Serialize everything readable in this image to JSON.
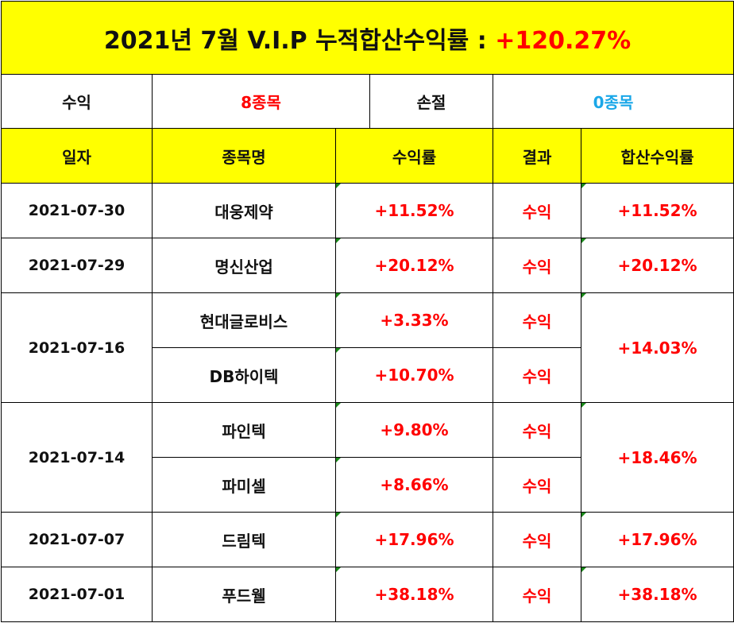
{
  "title": {
    "prefix": "2021년 7월 V.I.P 누적합산수익률 : ",
    "total_return": "+120.27%"
  },
  "summary": {
    "profit_label": "수익",
    "profit_count": "8종목",
    "loss_label": "손절",
    "loss_count": "0종목"
  },
  "headers": {
    "date": "일자",
    "stock": "종목명",
    "return": "수익률",
    "result": "결과",
    "combined": "합산수익률"
  },
  "rows": [
    {
      "date": "2021-07-30",
      "stock": "대웅제약",
      "return": "+11.52%",
      "result": "수익",
      "combined": "+11.52%"
    },
    {
      "date": "2021-07-29",
      "stock": "명신산업",
      "return": "+20.12%",
      "result": "수익",
      "combined": "+20.12%"
    },
    {
      "date": "2021-07-16",
      "stock": "현대글로비스",
      "return": "+3.33%",
      "result": "수익",
      "combined": "+14.03%"
    },
    {
      "stock": "DB하이텍",
      "return": "+10.70%",
      "result": "수익"
    },
    {
      "date": "2021-07-14",
      "stock": "파인텍",
      "return": "+9.80%",
      "result": "수익",
      "combined": "+18.46%"
    },
    {
      "stock": "파미셀",
      "return": "+8.66%",
      "result": "수익"
    },
    {
      "date": "2021-07-07",
      "stock": "드림텍",
      "return": "+17.96%",
      "result": "수익",
      "combined": "+17.96%"
    },
    {
      "date": "2021-07-01",
      "stock": "푸드웰",
      "return": "+38.18%",
      "result": "수익",
      "combined": "+38.18%"
    }
  ],
  "colors": {
    "header_bg": "#ffff00",
    "profit": "#ff0000",
    "loss": "#1aa7e8",
    "comment_marker": "#1a8a1a"
  }
}
